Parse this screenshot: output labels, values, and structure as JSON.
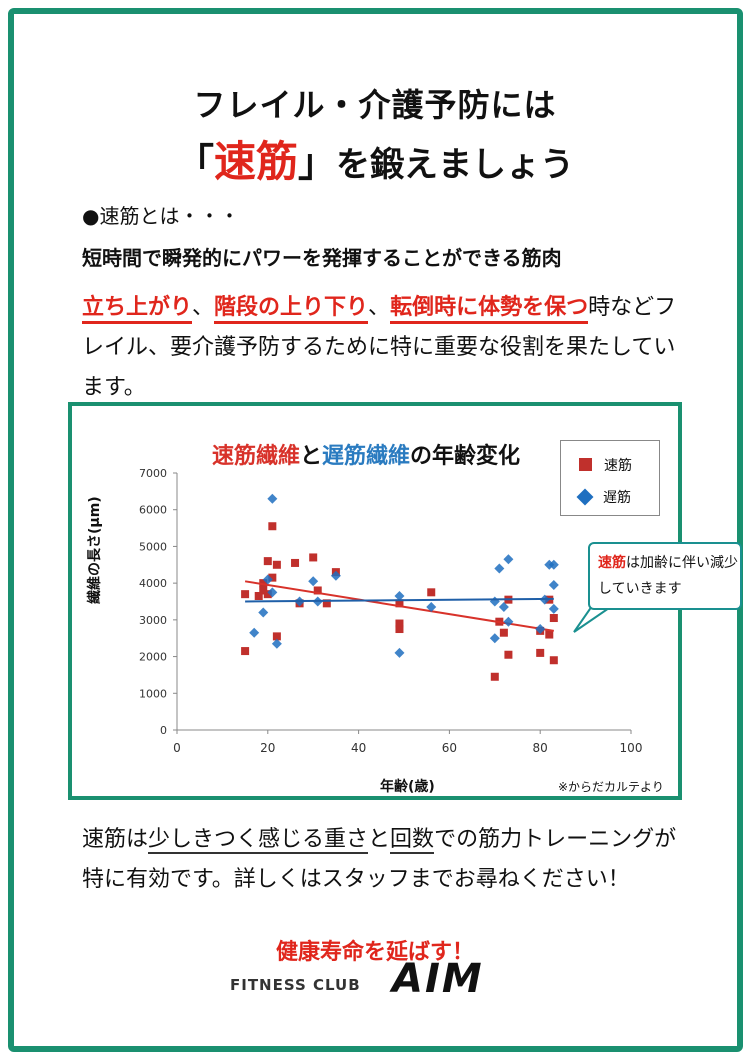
{
  "title": {
    "line1": "フレイル・介護予防には",
    "line2_open": "「",
    "line2_accent": "速筋",
    "line2_close": "」",
    "line2_rest": "を鍛えましょう"
  },
  "intro": {
    "what_label": "●速筋とは・・・",
    "definition": "短時間で瞬発的にパワーを発揮することができる筋肉",
    "hl1": "立ち上がり",
    "sep1": "、",
    "hl2": "階段の上り下り",
    "sep2": "、",
    "hl3": "転倒時に体勢を保つ",
    "rest": "時などフレイル、要介護予防するために特に重要な役割を果たしています。"
  },
  "chart_data": {
    "type": "scatter",
    "title_part1": "速筋繊維",
    "title_part2": "と",
    "title_part3": "遅筋繊維",
    "title_part4": "の年齢変化",
    "xlabel": "年齢(歳)",
    "ylabel": "繊維の長さ(μm)",
    "xlim": [
      0,
      100
    ],
    "ylim": [
      0,
      7000
    ],
    "xticks": [
      0,
      20,
      40,
      60,
      80,
      100
    ],
    "yticks": [
      0,
      1000,
      2000,
      3000,
      4000,
      5000,
      6000,
      7000
    ],
    "grid": false,
    "legend_position": "top-right",
    "series": [
      {
        "name": "速筋",
        "color": "#c0302c",
        "marker": "square",
        "points": [
          [
            15,
            2150
          ],
          [
            15,
            3700
          ],
          [
            18,
            3650
          ],
          [
            19,
            3800
          ],
          [
            19,
            4000
          ],
          [
            20,
            3700
          ],
          [
            20,
            4600
          ],
          [
            21,
            5550
          ],
          [
            21,
            4150
          ],
          [
            22,
            4500
          ],
          [
            22,
            2550
          ],
          [
            26,
            4550
          ],
          [
            27,
            3450
          ],
          [
            30,
            4700
          ],
          [
            31,
            3800
          ],
          [
            33,
            3450
          ],
          [
            35,
            4300
          ],
          [
            49,
            2750
          ],
          [
            49,
            2900
          ],
          [
            49,
            3450
          ],
          [
            56,
            3750
          ],
          [
            70,
            1450
          ],
          [
            71,
            2950
          ],
          [
            72,
            2650
          ],
          [
            73,
            2050
          ],
          [
            73,
            3550
          ],
          [
            80,
            2100
          ],
          [
            80,
            2700
          ],
          [
            82,
            3550
          ],
          [
            82,
            2600
          ],
          [
            83,
            1900
          ],
          [
            83,
            3050
          ]
        ],
        "trend": [
          [
            15,
            4050
          ],
          [
            83,
            2700
          ]
        ]
      },
      {
        "name": "遅筋",
        "color": "#1f6fc0",
        "marker": "diamond",
        "points": [
          [
            17,
            2650
          ],
          [
            19,
            3200
          ],
          [
            20,
            4100
          ],
          [
            21,
            6300
          ],
          [
            21,
            3750
          ],
          [
            22,
            2350
          ],
          [
            27,
            3500
          ],
          [
            30,
            4050
          ],
          [
            31,
            3500
          ],
          [
            35,
            4200
          ],
          [
            49,
            2100
          ],
          [
            49,
            3650
          ],
          [
            56,
            3350
          ],
          [
            70,
            3500
          ],
          [
            70,
            2500
          ],
          [
            71,
            4400
          ],
          [
            72,
            3350
          ],
          [
            73,
            4650
          ],
          [
            73,
            2950
          ],
          [
            80,
            2750
          ],
          [
            81,
            3550
          ],
          [
            82,
            4500
          ],
          [
            83,
            3950
          ],
          [
            83,
            4500
          ],
          [
            83,
            3300
          ]
        ],
        "trend": [
          [
            15,
            3500
          ],
          [
            83,
            3570
          ]
        ]
      }
    ],
    "source": "※からだカルテより",
    "callout_red": "速筋",
    "callout_rest": "は加齢に伴い減少していきます"
  },
  "outro": {
    "p1": "速筋は",
    "u1": "少しきつく感じる重さ",
    "p2": "と",
    "u2": "回数",
    "p3": "での筋力トレーニングが特に有効です。詳しくはスタッフまでお尋ねください！"
  },
  "slogan": "健康寿命を延ばす！",
  "brand": {
    "small": "FITNESS CLUB",
    "big": "AIM"
  },
  "colors": {
    "frame": "#1a9070",
    "accent_red": "#e0261c",
    "fast_series": "#c0302c",
    "slow_series": "#1f6fc0"
  }
}
